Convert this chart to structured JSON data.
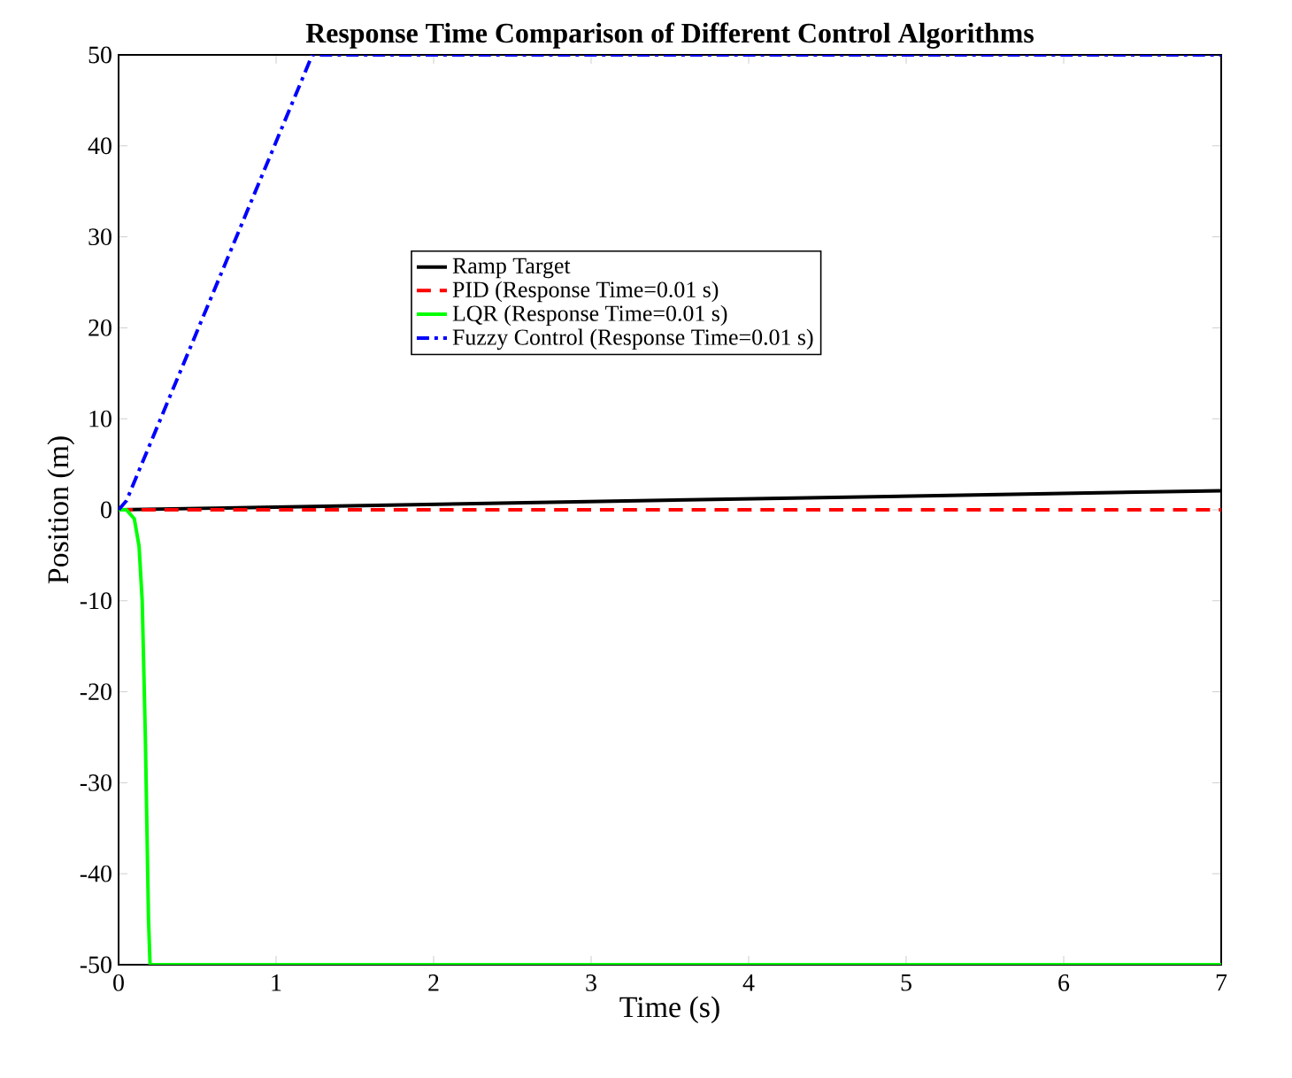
{
  "chart_data": {
    "type": "line",
    "title": "Response Time Comparison of Different Control Algorithms",
    "xlabel": "Time (s)",
    "ylabel": "Position (m)",
    "xlim": [
      0,
      7
    ],
    "ylim": [
      -50,
      50
    ],
    "xticks": [
      0,
      1,
      2,
      3,
      4,
      5,
      6,
      7
    ],
    "yticks": [
      -50,
      -40,
      -30,
      -20,
      -10,
      0,
      10,
      20,
      30,
      40,
      50
    ],
    "grid": false,
    "legend": "top",
    "marker": "none",
    "series": [
      {
        "name": "Ramp Target",
        "color": "#000000",
        "line_style": "solid",
        "x": [
          0,
          7
        ],
        "values": [
          0,
          2.1
        ]
      },
      {
        "name": "PID (Response Time=0.01 s)",
        "color": "#ff0000",
        "line_style": "dashed",
        "x": [
          0,
          1,
          2,
          3,
          4,
          5,
          6,
          7
        ],
        "values": [
          0,
          0,
          0,
          0,
          0,
          0,
          0,
          0
        ]
      },
      {
        "name": "LQR (Response Time=0.01 s)",
        "color": "#00ff00",
        "line_style": "solid",
        "x": [
          0,
          0.05,
          0.1,
          0.13,
          0.15,
          0.17,
          0.19,
          0.2,
          7
        ],
        "values": [
          0,
          0,
          -1,
          -4,
          -10,
          -25,
          -45,
          -50,
          -50
        ]
      },
      {
        "name": "Fuzzy Control (Response Time=0.01 s)",
        "color": "#0000ff",
        "line_style": "dashdot",
        "x": [
          0,
          0.05,
          1.23,
          7
        ],
        "values": [
          0,
          1,
          50,
          50
        ]
      }
    ]
  }
}
